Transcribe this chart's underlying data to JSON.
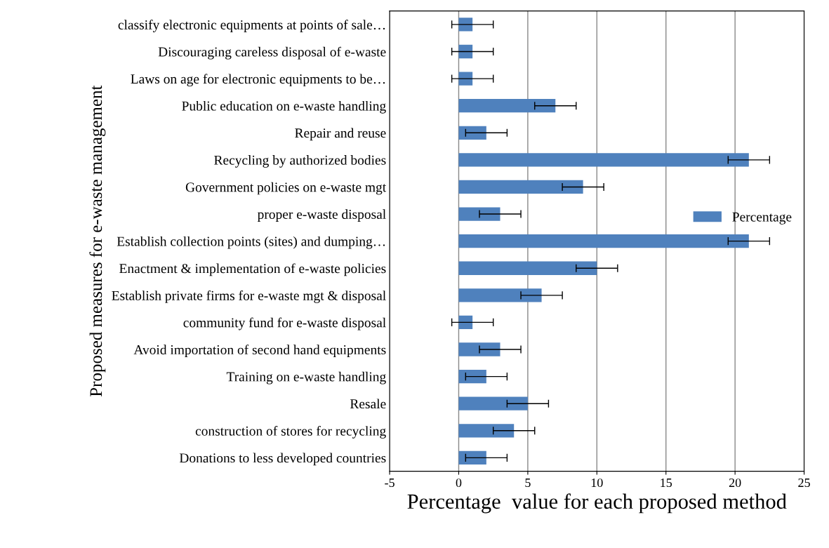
{
  "chart_data": {
    "type": "bar",
    "orientation": "horizontal",
    "xlabel": "Percentage  value for each proposed method",
    "ylabel": "Proposed measures for e-waste management",
    "categories": [
      "classify electronic equipments at points of sale…",
      "Discouraging careless disposal of e-waste",
      "Laws on age for electronic equipments to be…",
      "Public education on e-waste handling",
      "Repair and reuse",
      "Recycling by authorized bodies",
      "Government policies on e-waste mgt",
      "proper e-waste disposal",
      "Establish collection points (sites) and dumping…",
      "Enactment & implementation of e-waste policies",
      "Establish private firms for e-waste mgt & disposal",
      "community fund for e-waste disposal",
      "Avoid importation of second hand equipments",
      "Training on e-waste handling",
      "Resale",
      "construction of stores for recycling",
      "Donations to less developed countries"
    ],
    "series": [
      {
        "name": "Percentage",
        "color": "#4f81bd",
        "values": [
          1,
          1,
          1,
          7,
          2,
          21,
          9,
          3,
          21,
          10,
          6,
          1,
          3,
          2,
          5,
          4,
          2
        ],
        "errors": [
          1.5,
          1.5,
          1.5,
          1.5,
          1.5,
          1.5,
          1.5,
          1.5,
          1.5,
          1.5,
          1.5,
          1.5,
          1.5,
          1.5,
          1.5,
          1.5,
          1.5
        ]
      }
    ],
    "xlim": [
      -5,
      25
    ],
    "xticks": [
      -5,
      0,
      5,
      10,
      15,
      20,
      25
    ],
    "grid": "x",
    "legend": "right"
  }
}
